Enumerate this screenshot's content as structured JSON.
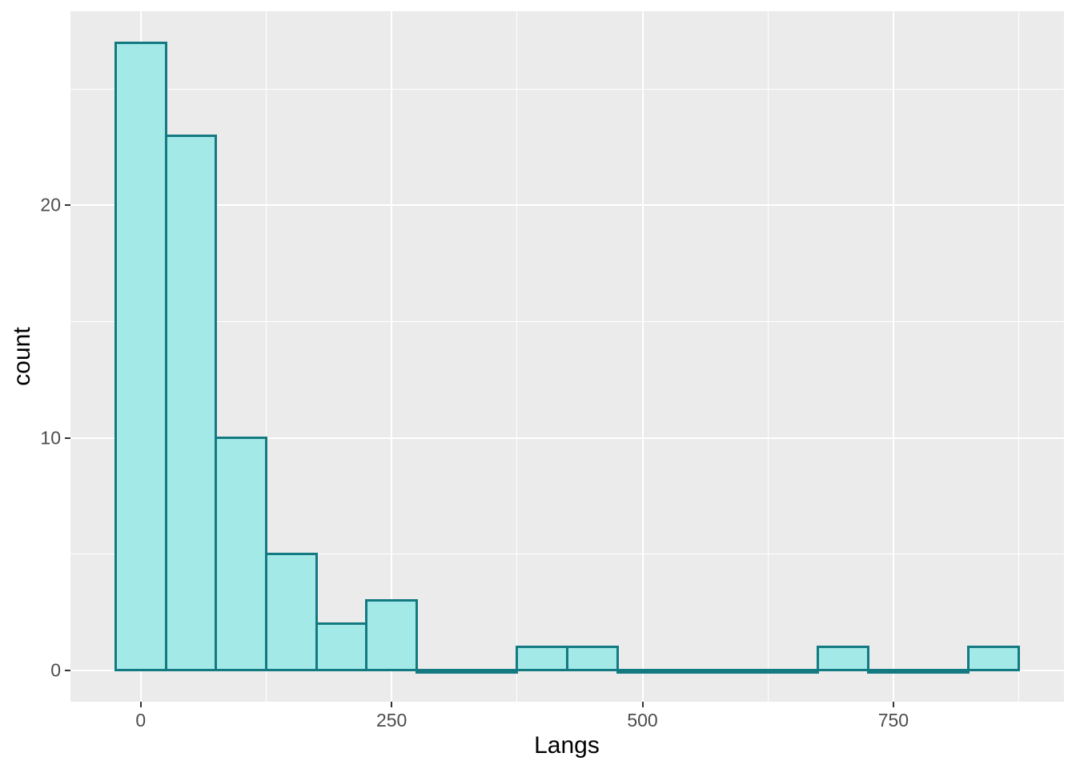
{
  "chart_data": {
    "type": "bar",
    "subtype": "histogram",
    "title": "",
    "xlabel": "Langs",
    "ylabel": "count",
    "bin_start": -25,
    "bin_width": 50,
    "counts": [
      27,
      23,
      10,
      5,
      2,
      3,
      0,
      0,
      1,
      1,
      0,
      0,
      0,
      0,
      1,
      0,
      0,
      1
    ],
    "x_major_ticks": [
      0,
      250,
      500,
      750
    ],
    "x_tick_labels": [
      "0",
      "250",
      "500",
      "750"
    ],
    "x_minor_gridlines": [
      125,
      375,
      625,
      875
    ],
    "y_major_ticks": [
      0,
      10,
      20
    ],
    "y_tick_labels": [
      "0",
      "10",
      "20"
    ],
    "y_minor_gridlines": [
      5,
      15,
      25
    ],
    "xlim": [
      -70,
      920
    ],
    "ylim": [
      -1.35,
      28.35
    ],
    "grid": true,
    "legend": false,
    "colors": {
      "bar_fill": "#A2E9E7",
      "bar_stroke": "#147A82",
      "panel_background": "#EBEBEB",
      "gridline": "#FFFFFF",
      "tick_mark": "#333333",
      "tick_label": "#4D4D4D",
      "axis_title": "#000000"
    }
  }
}
